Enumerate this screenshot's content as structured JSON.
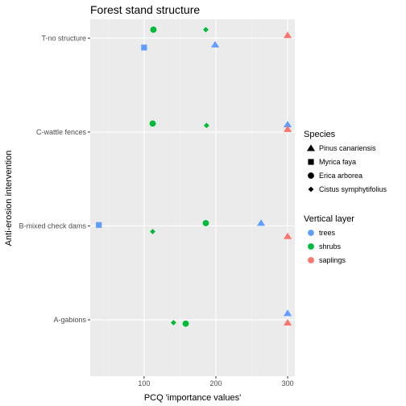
{
  "chart_data": {
    "type": "scatter",
    "title": "Forest stand structure",
    "xlabel": "PCQ 'importance values'",
    "ylabel": "Anti-erosion intervention",
    "xlim": [
      25,
      310
    ],
    "x_ticks": [
      100,
      200,
      300
    ],
    "categories": [
      "A-gabions",
      "B-mixed check dams",
      "C-wattle fences",
      "T-no structure"
    ],
    "grid": true,
    "legends": [
      {
        "title": "Species",
        "entries": [
          {
            "label": "Pinus canariensis",
            "shape": "triangle"
          },
          {
            "label": "Myrica faya",
            "shape": "square"
          },
          {
            "label": "Erica arborea",
            "shape": "circle"
          },
          {
            "label": "Cistus  symphytifolius",
            "shape": "diamond"
          }
        ]
      },
      {
        "title": "Vertical layer",
        "entries": [
          {
            "label": "trees",
            "color": "#619CFF"
          },
          {
            "label": "shrubs",
            "color": "#00BA38"
          },
          {
            "label": "saplings",
            "color": "#F8766D"
          }
        ]
      }
    ],
    "legend_position": "right",
    "points": [
      {
        "category": "T-no structure",
        "x": 113,
        "layer": "shrubs",
        "species": "Erica arborea",
        "offset": 0.09
      },
      {
        "category": "T-no structure",
        "x": 186,
        "layer": "shrubs",
        "species": "Cistus  symphytifolius",
        "offset": 0.09
      },
      {
        "category": "T-no structure",
        "x": 300,
        "layer": "saplings",
        "species": "Pinus canariensis",
        "offset": 0.03
      },
      {
        "category": "T-no structure",
        "x": 100,
        "layer": "trees",
        "species": "Myrica faya",
        "offset": -0.1
      },
      {
        "category": "T-no structure",
        "x": 199,
        "layer": "trees",
        "species": "Pinus canariensis",
        "offset": -0.07
      },
      {
        "category": "C-wattle fences",
        "x": 112,
        "layer": "shrubs",
        "species": "Erica arborea",
        "offset": 0.09
      },
      {
        "category": "C-wattle fences",
        "x": 187,
        "layer": "shrubs",
        "species": "Cistus  symphytifolius",
        "offset": 0.07
      },
      {
        "category": "C-wattle fences",
        "x": 300,
        "layer": "trees",
        "species": "Pinus canariensis",
        "offset": 0.08
      },
      {
        "category": "C-wattle fences",
        "x": 300,
        "layer": "saplings",
        "species": "Pinus canariensis",
        "offset": 0.03
      },
      {
        "category": "B-mixed check dams",
        "x": 37,
        "layer": "trees",
        "species": "Myrica faya",
        "offset": 0.01
      },
      {
        "category": "B-mixed check dams",
        "x": 112,
        "layer": "shrubs",
        "species": "Cistus  symphytifolius",
        "offset": -0.06
      },
      {
        "category": "B-mixed check dams",
        "x": 186,
        "layer": "shrubs",
        "species": "Erica arborea",
        "offset": 0.03
      },
      {
        "category": "B-mixed check dams",
        "x": 263,
        "layer": "trees",
        "species": "Pinus canariensis",
        "offset": 0.03
      },
      {
        "category": "B-mixed check dams",
        "x": 300,
        "layer": "saplings",
        "species": "Pinus canariensis",
        "offset": -0.11
      },
      {
        "category": "A-gabions",
        "x": 141,
        "layer": "shrubs",
        "species": "Cistus  symphytifolius",
        "offset": -0.03
      },
      {
        "category": "A-gabions",
        "x": 158,
        "layer": "shrubs",
        "species": "Erica arborea",
        "offset": -0.04
      },
      {
        "category": "A-gabions",
        "x": 300,
        "layer": "trees",
        "species": "Pinus canariensis",
        "offset": 0.07
      },
      {
        "category": "A-gabions",
        "x": 300,
        "layer": "saplings",
        "species": "Pinus canariensis",
        "offset": -0.03
      }
    ]
  }
}
